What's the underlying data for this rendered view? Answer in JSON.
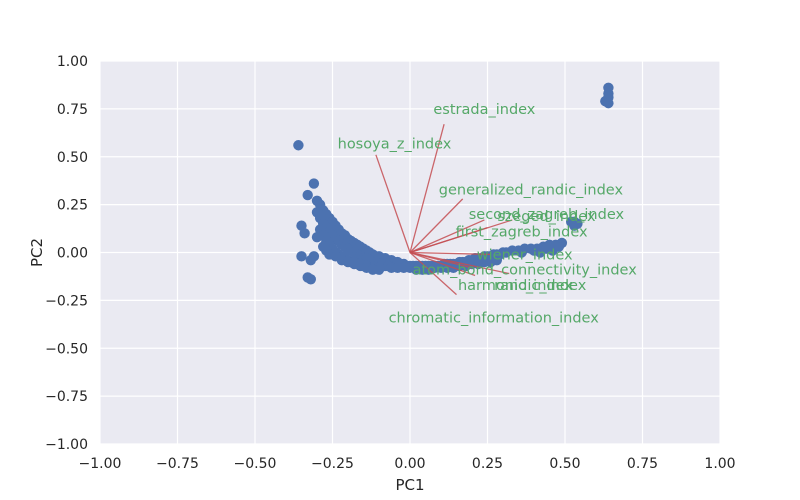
{
  "chart_data": {
    "type": "scatter",
    "title": "",
    "xlabel": "PC1",
    "ylabel": "PC2",
    "xlim": [
      -1.0,
      1.0
    ],
    "ylim": [
      -1.0,
      1.0
    ],
    "grid": true,
    "background": "#eaeaf2",
    "point_color": "#4c72b0",
    "vector_color": "#c44e52",
    "label_color": "#55a868",
    "xticks": [
      {
        "v": -1.0,
        "label": "−1.00"
      },
      {
        "v": -0.75,
        "label": "−0.75"
      },
      {
        "v": -0.5,
        "label": "−0.50"
      },
      {
        "v": -0.25,
        "label": "−0.25"
      },
      {
        "v": 0.0,
        "label": "0.00"
      },
      {
        "v": 0.25,
        "label": "0.25"
      },
      {
        "v": 0.5,
        "label": "0.50"
      },
      {
        "v": 0.75,
        "label": "0.75"
      },
      {
        "v": 1.0,
        "label": "1.00"
      }
    ],
    "yticks": [
      {
        "v": 1.0,
        "label": "1.00"
      },
      {
        "v": 0.75,
        "label": "0.75"
      },
      {
        "v": 0.5,
        "label": "0.50"
      },
      {
        "v": 0.25,
        "label": "0.25"
      },
      {
        "v": 0.0,
        "label": "0.00"
      },
      {
        "v": -0.25,
        "label": "−0.25"
      },
      {
        "v": -0.5,
        "label": "−0.50"
      },
      {
        "v": -0.75,
        "label": "−0.75"
      },
      {
        "v": -1.0,
        "label": "−1.00"
      }
    ],
    "points": [
      [
        -0.36,
        0.56
      ],
      [
        -0.31,
        0.36
      ],
      [
        -0.33,
        0.3
      ],
      [
        -0.35,
        0.14
      ],
      [
        -0.34,
        0.1
      ],
      [
        -0.35,
        -0.02
      ],
      [
        -0.33,
        -0.13
      ],
      [
        -0.32,
        -0.14
      ],
      [
        -0.32,
        -0.04
      ],
      [
        -0.31,
        -0.02
      ],
      [
        -0.3,
        0.27
      ],
      [
        -0.29,
        0.25
      ],
      [
        -0.28,
        0.22
      ],
      [
        -0.27,
        0.2
      ],
      [
        -0.26,
        0.18
      ],
      [
        -0.25,
        0.16
      ],
      [
        -0.24,
        0.14
      ],
      [
        -0.23,
        0.12
      ],
      [
        -0.22,
        0.1
      ],
      [
        -0.21,
        0.09
      ],
      [
        -0.2,
        0.07
      ],
      [
        -0.19,
        0.06
      ],
      [
        -0.18,
        0.05
      ],
      [
        -0.17,
        0.04
      ],
      [
        -0.16,
        0.03
      ],
      [
        -0.15,
        0.02
      ],
      [
        -0.14,
        0.01
      ],
      [
        -0.13,
        0.0
      ],
      [
        -0.12,
        -0.01
      ],
      [
        -0.11,
        -0.02
      ],
      [
        -0.1,
        -0.02
      ],
      [
        -0.09,
        -0.03
      ],
      [
        -0.08,
        -0.03
      ],
      [
        -0.07,
        -0.04
      ],
      [
        -0.06,
        -0.04
      ],
      [
        -0.05,
        -0.05
      ],
      [
        -0.04,
        -0.05
      ],
      [
        -0.3,
        0.21
      ],
      [
        -0.29,
        0.18
      ],
      [
        -0.28,
        0.15
      ],
      [
        -0.27,
        0.13
      ],
      [
        -0.26,
        0.11
      ],
      [
        -0.25,
        0.09
      ],
      [
        -0.24,
        0.07
      ],
      [
        -0.23,
        0.06
      ],
      [
        -0.22,
        0.04
      ],
      [
        -0.21,
        0.03
      ],
      [
        -0.2,
        0.02
      ],
      [
        -0.19,
        0.01
      ],
      [
        -0.18,
        0.0
      ],
      [
        -0.17,
        -0.01
      ],
      [
        -0.16,
        -0.02
      ],
      [
        -0.15,
        -0.03
      ],
      [
        -0.14,
        -0.03
      ],
      [
        -0.13,
        -0.04
      ],
      [
        -0.12,
        -0.05
      ],
      [
        -0.11,
        -0.05
      ],
      [
        -0.1,
        -0.06
      ],
      [
        -0.09,
        -0.06
      ],
      [
        -0.08,
        -0.07
      ],
      [
        -0.07,
        -0.07
      ],
      [
        -0.29,
        0.12
      ],
      [
        -0.28,
        0.09
      ],
      [
        -0.27,
        0.06
      ],
      [
        -0.26,
        0.04
      ],
      [
        -0.25,
        0.02
      ],
      [
        -0.24,
        0.0
      ],
      [
        -0.23,
        -0.01
      ],
      [
        -0.22,
        -0.02
      ],
      [
        -0.21,
        -0.03
      ],
      [
        -0.2,
        -0.04
      ],
      [
        -0.19,
        -0.05
      ],
      [
        -0.18,
        -0.05
      ],
      [
        -0.17,
        -0.06
      ],
      [
        -0.16,
        -0.06
      ],
      [
        -0.15,
        -0.07
      ],
      [
        -0.14,
        -0.07
      ],
      [
        -0.12,
        -0.08
      ],
      [
        -0.1,
        -0.08
      ],
      [
        -0.3,
        0.08
      ],
      [
        -0.28,
        0.03
      ],
      [
        -0.27,
        0.01
      ],
      [
        -0.26,
        -0.01
      ],
      [
        -0.24,
        -0.02
      ],
      [
        -0.22,
        -0.04
      ],
      [
        -0.2,
        -0.05
      ],
      [
        -0.18,
        -0.06
      ],
      [
        -0.16,
        -0.07
      ],
      [
        -0.14,
        -0.08
      ],
      [
        -0.12,
        -0.09
      ],
      [
        -0.1,
        -0.09
      ],
      [
        -0.03,
        -0.06
      ],
      [
        -0.02,
        -0.06
      ],
      [
        -0.01,
        -0.07
      ],
      [
        0.0,
        -0.07
      ],
      [
        0.01,
        -0.07
      ],
      [
        0.02,
        -0.07
      ],
      [
        0.03,
        -0.07
      ],
      [
        0.04,
        -0.07
      ],
      [
        0.05,
        -0.07
      ],
      [
        0.06,
        -0.07
      ],
      [
        0.07,
        -0.07
      ],
      [
        0.08,
        -0.07
      ],
      [
        0.09,
        -0.07
      ],
      [
        0.1,
        -0.07
      ],
      [
        0.11,
        -0.06
      ],
      [
        0.12,
        -0.06
      ],
      [
        0.13,
        -0.06
      ],
      [
        0.14,
        -0.06
      ],
      [
        0.15,
        -0.06
      ],
      [
        0.16,
        -0.05
      ],
      [
        0.17,
        -0.05
      ],
      [
        0.18,
        -0.05
      ],
      [
        0.19,
        -0.04
      ],
      [
        0.2,
        -0.04
      ],
      [
        0.21,
        -0.03
      ],
      [
        0.22,
        -0.03
      ],
      [
        0.23,
        -0.03
      ],
      [
        0.24,
        -0.02
      ],
      [
        0.25,
        -0.02
      ],
      [
        0.26,
        -0.02
      ],
      [
        0.27,
        -0.01
      ],
      [
        0.28,
        -0.01
      ],
      [
        0.29,
        -0.01
      ],
      [
        0.3,
        0.0
      ],
      [
        0.31,
        0.0
      ],
      [
        -0.06,
        -0.08
      ],
      [
        -0.04,
        -0.08
      ],
      [
        -0.02,
        -0.08
      ],
      [
        0.0,
        -0.08
      ],
      [
        0.02,
        -0.09
      ],
      [
        0.04,
        -0.09
      ],
      [
        0.06,
        -0.09
      ],
      [
        0.08,
        -0.08
      ],
      [
        0.1,
        -0.08
      ],
      [
        0.12,
        -0.08
      ],
      [
        0.14,
        -0.08
      ],
      [
        0.16,
        -0.07
      ],
      [
        0.18,
        -0.07
      ],
      [
        0.2,
        -0.06
      ],
      [
        0.22,
        -0.06
      ],
      [
        0.24,
        -0.05
      ],
      [
        0.26,
        -0.05
      ],
      [
        0.28,
        -0.04
      ],
      [
        0.33,
        0.01
      ],
      [
        0.35,
        0.01
      ],
      [
        0.37,
        0.02
      ],
      [
        0.39,
        0.02
      ],
      [
        0.41,
        0.02
      ],
      [
        0.43,
        0.03
      ],
      [
        0.45,
        0.04
      ],
      [
        0.47,
        0.04
      ],
      [
        0.49,
        0.05
      ],
      [
        0.36,
        0.0
      ],
      [
        0.4,
        0.01
      ],
      [
        0.44,
        0.02
      ],
      [
        0.48,
        0.03
      ],
      [
        0.42,
        0.0
      ],
      [
        0.46,
        0.01
      ],
      [
        0.52,
        0.16
      ],
      [
        0.53,
        0.16
      ],
      [
        0.54,
        0.15
      ],
      [
        0.53,
        0.14
      ],
      [
        0.64,
        0.86
      ],
      [
        0.64,
        0.83
      ],
      [
        0.64,
        0.81
      ],
      [
        0.63,
        0.79
      ],
      [
        0.64,
        0.78
      ]
    ],
    "vectors": [
      {
        "name": "estrada_index",
        "dx": 0.11,
        "dy": 0.67,
        "lx": 0.24,
        "ly": 0.75
      },
      {
        "name": "hosoya_z_index",
        "dx": -0.11,
        "dy": 0.51,
        "lx": -0.05,
        "ly": 0.57
      },
      {
        "name": "generalized_randic_index",
        "dx": 0.17,
        "dy": 0.28,
        "lx": 0.39,
        "ly": 0.33
      },
      {
        "name": "second_zagreb_index",
        "dx": 0.24,
        "dy": 0.17,
        "lx": 0.44,
        "ly": 0.2
      },
      {
        "name": "szeged_index",
        "dx": 0.33,
        "dy": 0.17,
        "lx": 0.44,
        "ly": 0.19
      },
      {
        "name": "first_zagreb_index",
        "dx": 0.25,
        "dy": 0.13,
        "lx": 0.36,
        "ly": 0.11
      },
      {
        "name": "wiener_index",
        "dx": 0.26,
        "dy": -0.01,
        "lx": 0.37,
        "ly": -0.01
      },
      {
        "name": "atom_bond_connectivity_index",
        "dx": 0.2,
        "dy": -0.08,
        "lx": 0.37,
        "ly": -0.09
      },
      {
        "name": "harmonic_index",
        "dx": 0.21,
        "dy": -0.12,
        "lx": 0.34,
        "ly": -0.17
      },
      {
        "name": "randic_index",
        "dx": 0.32,
        "dy": -0.11,
        "lx": 0.42,
        "ly": -0.17
      },
      {
        "name": "chromatic_information_index",
        "dx": 0.15,
        "dy": -0.22,
        "lx": 0.27,
        "ly": -0.34
      }
    ]
  }
}
